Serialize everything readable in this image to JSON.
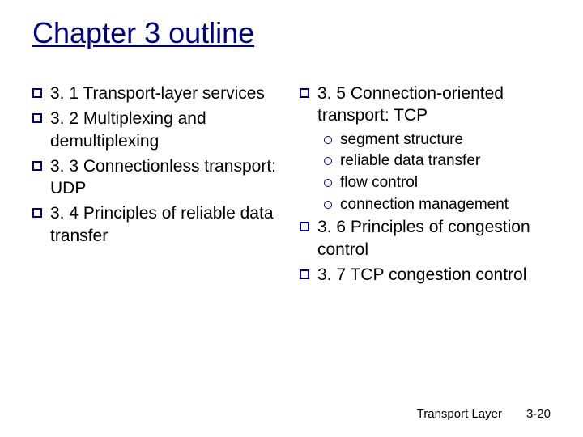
{
  "title": "Chapter 3 outline",
  "title_color": "#000080",
  "title_fontsize": 36,
  "body_fontsize": 21,
  "sub_fontsize": 19,
  "bullet_border_color": "#000080",
  "background_color": "#ffffff",
  "text_color": "#000000",
  "left_column": [
    "3. 1 Transport-layer services",
    "3. 2 Multiplexing and demultiplexing",
    "3. 3 Connectionless transport: UDP",
    "3. 4 Principles of reliable data transfer"
  ],
  "right_column": [
    {
      "text": "3. 5 Connection-oriented transport: TCP",
      "sub": [
        "segment structure",
        "reliable data transfer",
        "flow control",
        "connection management"
      ]
    },
    {
      "text": "3. 6 Principles of congestion control",
      "sub": []
    },
    {
      "text": "3. 7 TCP congestion control",
      "sub": []
    }
  ],
  "footer_left": "Transport Layer",
  "footer_right": "3-20"
}
